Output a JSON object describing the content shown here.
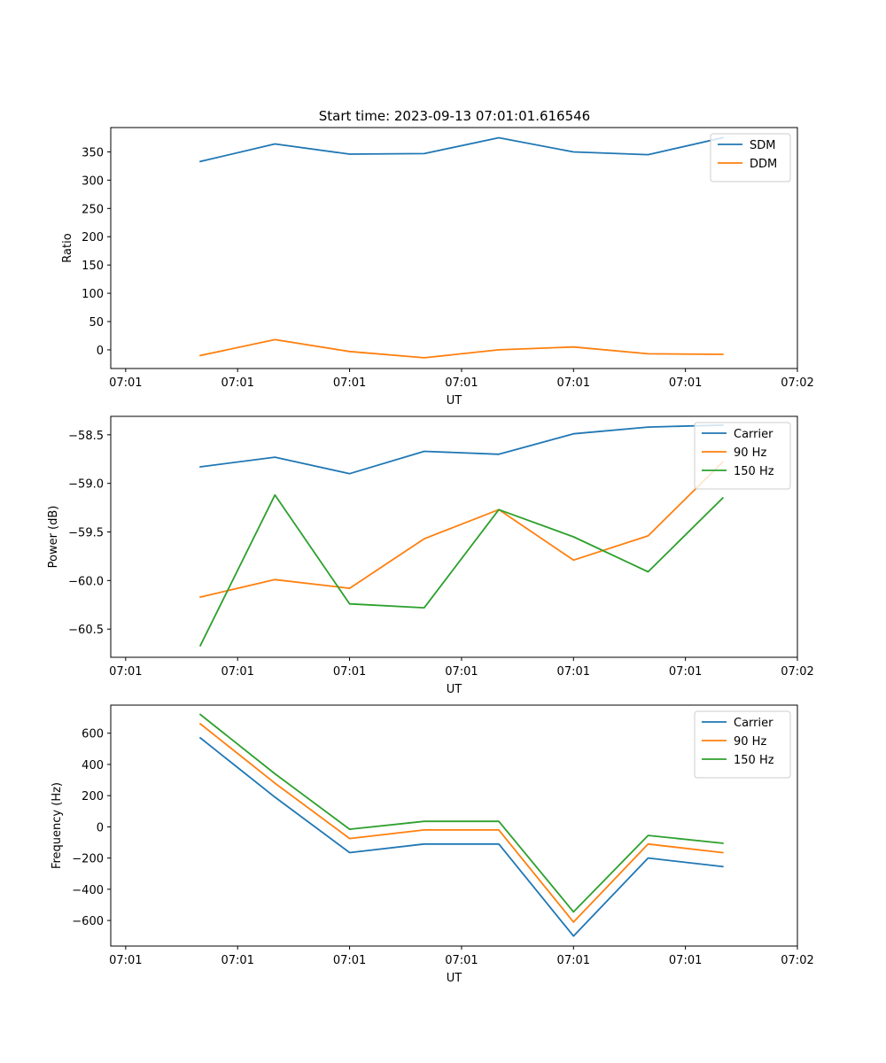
{
  "figure_title": "Start time: 2023-09-13 07:01:01.616546",
  "chart_data": [
    {
      "type": "line",
      "title": "Start time: 2023-09-13 07:01:01.616546",
      "xlabel": "UT",
      "ylabel": "Ratio",
      "x": [
        1,
        2,
        3,
        4,
        5,
        6,
        7,
        8
      ],
      "xlim": [
        -0.2,
        9.0
      ],
      "xticks": [
        0,
        1.5,
        3,
        4.5,
        6,
        7.5,
        9
      ],
      "xtick_labels": [
        "07:01",
        "07:01",
        "07:01",
        "07:01",
        "07:01",
        "07:01",
        "07:02"
      ],
      "ylim": [
        -33,
        393
      ],
      "yticks": [
        0,
        50,
        100,
        150,
        200,
        250,
        300,
        350
      ],
      "ytick_labels": [
        "0",
        "50",
        "100",
        "150",
        "200",
        "250",
        "300",
        "350"
      ],
      "legend_position": "top-right",
      "series": [
        {
          "name": "SDM",
          "color": "#1f77b4",
          "values": [
            333,
            364,
            346,
            347,
            375,
            350,
            345,
            375
          ]
        },
        {
          "name": "DDM",
          "color": "#ff7f0e",
          "values": [
            -10,
            18,
            -3,
            -14,
            0,
            5,
            -7,
            -8
          ]
        }
      ]
    },
    {
      "type": "line",
      "title": "",
      "xlabel": "UT",
      "ylabel": "Power (dB)",
      "x": [
        1,
        2,
        3,
        4,
        5,
        6,
        7,
        8
      ],
      "xlim": [
        -0.2,
        9.0
      ],
      "xticks": [
        0,
        1.5,
        3,
        4.5,
        6,
        7.5,
        9
      ],
      "xtick_labels": [
        "07:01",
        "07:01",
        "07:01",
        "07:01",
        "07:01",
        "07:01",
        "07:02"
      ],
      "ylim": [
        -60.79,
        -58.31
      ],
      "yticks": [
        -60.5,
        -60.0,
        -59.5,
        -59.0,
        -58.5
      ],
      "ytick_labels": [
        "−60.5",
        "−60.0",
        "−59.5",
        "−59.0",
        "−58.5"
      ],
      "legend_position": "top-right",
      "series": [
        {
          "name": "Carrier",
          "color": "#1f77b4",
          "values": [
            -58.83,
            -58.73,
            -58.9,
            -58.67,
            -58.7,
            -58.49,
            -58.42,
            -58.4
          ]
        },
        {
          "name": "90 Hz",
          "color": "#ff7f0e",
          "values": [
            -60.17,
            -59.99,
            -60.08,
            -59.57,
            -59.27,
            -59.79,
            -59.54,
            -58.78
          ]
        },
        {
          "name": "150 Hz",
          "color": "#2ca02c",
          "values": [
            -60.67,
            -59.12,
            -60.24,
            -60.28,
            -59.27,
            -59.55,
            -59.91,
            -59.15
          ]
        }
      ]
    },
    {
      "type": "line",
      "title": "",
      "xlabel": "UT",
      "ylabel": "Frequency (Hz)",
      "x": [
        1,
        2,
        3,
        4,
        5,
        6,
        7,
        8
      ],
      "xlim": [
        -0.2,
        9.0
      ],
      "xticks": [
        0,
        1.5,
        3,
        4.5,
        6,
        7.5,
        9
      ],
      "xtick_labels": [
        "07:01",
        "07:01",
        "07:01",
        "07:01",
        "07:01",
        "07:01",
        "07:02"
      ],
      "ylim": [
        -764,
        780
      ],
      "yticks": [
        -600,
        -400,
        -200,
        0,
        200,
        400,
        600
      ],
      "ytick_labels": [
        "−600",
        "−400",
        "−200",
        "0",
        "200",
        "400",
        "600"
      ],
      "legend_position": "top-right",
      "series": [
        {
          "name": "Carrier",
          "color": "#1f77b4",
          "values": [
            570,
            190,
            -165,
            -110,
            -110,
            -700,
            -200,
            -255
          ]
        },
        {
          "name": "90 Hz",
          "color": "#ff7f0e",
          "values": [
            660,
            280,
            -75,
            -20,
            -20,
            -610,
            -110,
            -165
          ]
        },
        {
          "name": "150 Hz",
          "color": "#2ca02c",
          "values": [
            720,
            340,
            -15,
            35,
            35,
            -545,
            -55,
            -105
          ]
        }
      ]
    }
  ]
}
